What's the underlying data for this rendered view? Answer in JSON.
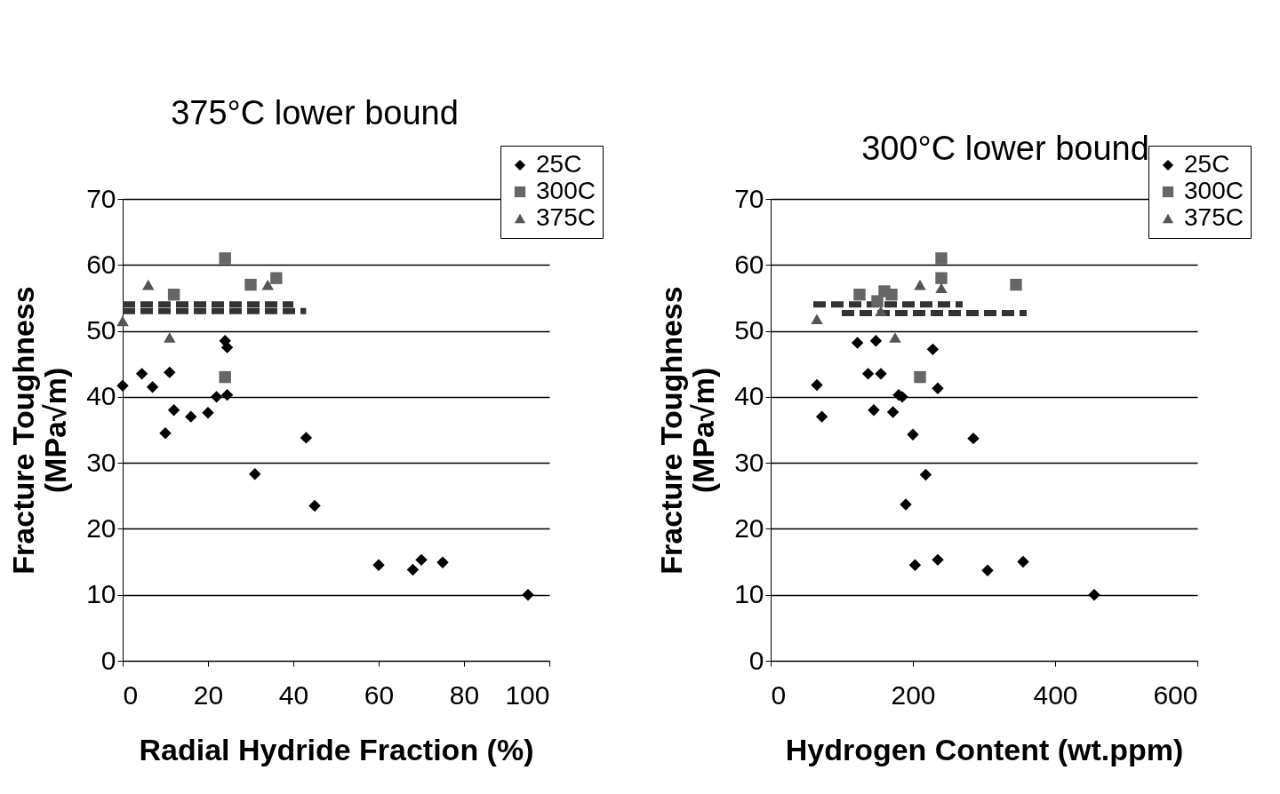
{
  "chart_data": [
    {
      "type": "scatter",
      "xlabel": "Radial Hydride Fraction  (%)",
      "ylabel": "Fracture Toughness (MPa√m)",
      "xlim": [
        0,
        100
      ],
      "xticks": [
        0,
        20,
        40,
        60,
        80,
        100
      ],
      "ylim": [
        0,
        70
      ],
      "yticks": [
        0,
        10,
        20,
        30,
        40,
        50,
        60,
        70
      ],
      "grid": "y",
      "legend": "top right",
      "annotations": [
        "375°C lower bound"
      ],
      "series": [
        {
          "name": "25C",
          "color": "#000000",
          "marker": "diamond",
          "x": [
            0,
            4.5,
            7,
            11,
            10,
            12,
            16,
            20,
            22,
            24,
            24.5,
            24.5,
            31,
            43,
            45,
            60,
            68,
            70,
            75,
            95
          ],
          "values": [
            41.7,
            43.5,
            41.5,
            43.7,
            34.5,
            38,
            37,
            37.6,
            40,
            48.5,
            47.5,
            40.3,
            28.3,
            33.8,
            23.5,
            14.5,
            13.8,
            15.3,
            14.9,
            10
          ]
        },
        {
          "name": "300C",
          "color": "#666666",
          "marker": "square",
          "x": [
            12,
            24,
            24,
            30,
            36
          ],
          "values": [
            55.5,
            61,
            43,
            57,
            58
          ]
        },
        {
          "name": "375C",
          "color": "#555555",
          "marker": "triangle",
          "x": [
            0,
            6,
            11,
            34
          ],
          "values": [
            51.5,
            57,
            49,
            57
          ]
        },
        {
          "type": "line",
          "color": "#333333",
          "line_style": "dashed",
          "x": [
            0,
            40
          ],
          "values": [
            54,
            54
          ]
        },
        {
          "type": "line",
          "color": "#333333",
          "line_style": "dashed",
          "x": [
            0,
            43
          ],
          "values": [
            53,
            53
          ]
        }
      ]
    },
    {
      "type": "scatter",
      "xlabel": "Hydrogen Content (wt.ppm)",
      "ylabel": "Fracture Toughness (MPa√m)",
      "xlim": [
        0,
        600
      ],
      "xticks": [
        0,
        200,
        400,
        600
      ],
      "ylim": [
        0,
        70
      ],
      "yticks": [
        0,
        10,
        20,
        30,
        40,
        50,
        60,
        70
      ],
      "grid": "y",
      "legend": "top right",
      "annotations": [
        "300°C lower bound"
      ],
      "series": [
        {
          "name": "25C",
          "color": "#000000",
          "marker": "diamond",
          "x": [
            65,
            72,
            122,
            137,
            145,
            148,
            155,
            172,
            180,
            185,
            190,
            200,
            203,
            218,
            228,
            235,
            235,
            285,
            305,
            355,
            455
          ],
          "values": [
            41.8,
            37,
            48.2,
            43.5,
            38,
            48.5,
            43.5,
            37.7,
            40.3,
            40,
            23.7,
            34.3,
            14.5,
            28.2,
            47.2,
            15.3,
            41.3,
            33.7,
            13.7,
            15,
            10
          ]
        },
        {
          "name": "300C",
          "color": "#666666",
          "marker": "square",
          "x": [
            125,
            150,
            160,
            170,
            210,
            240,
            240,
            345
          ],
          "values": [
            55.5,
            54.5,
            56,
            55.5,
            43,
            61,
            58,
            57
          ]
        },
        {
          "name": "375C",
          "color": "#555555",
          "marker": "triangle",
          "x": [
            65,
            155,
            175,
            210,
            240
          ],
          "values": [
            51.8,
            53,
            49,
            57,
            56.5
          ]
        },
        {
          "type": "line",
          "color": "#333333",
          "line_style": "dashed",
          "x": [
            60,
            270
          ],
          "values": [
            54,
            54
          ]
        },
        {
          "type": "line",
          "color": "#333333",
          "line_style": "dashed",
          "x": [
            100,
            360
          ],
          "values": [
            52.7,
            52.7
          ]
        }
      ]
    }
  ]
}
